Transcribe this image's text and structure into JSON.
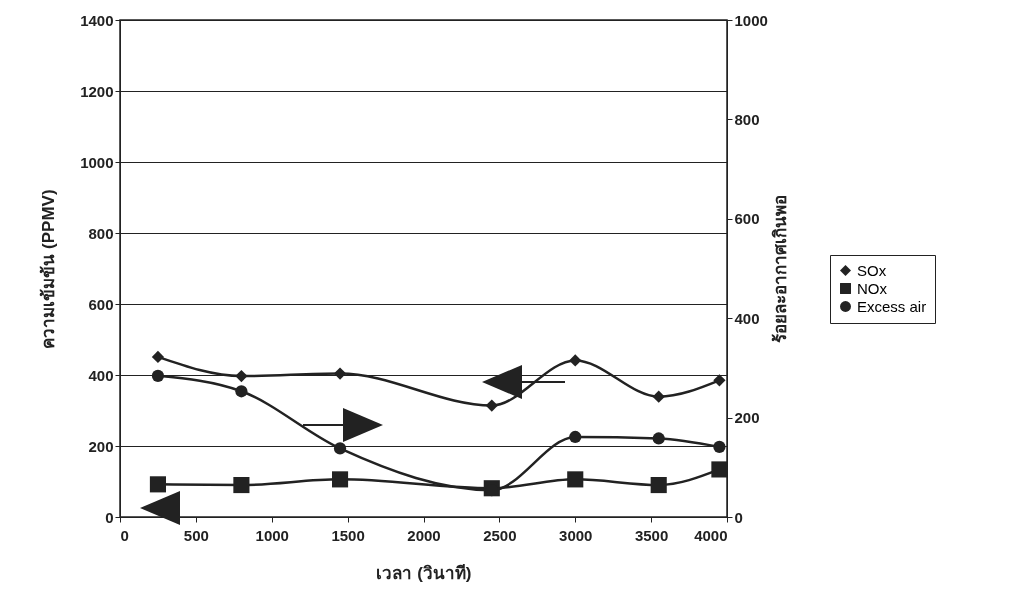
{
  "chart_data": {
    "type": "line",
    "xlabel": "เวลา (วินาที)",
    "ylabel": "ความเข้มข้น (PPMV)",
    "y2label": "ร้อยละอากาศเกินพอ",
    "x": [
      250,
      800,
      1450,
      2450,
      3000,
      3550,
      3950
    ],
    "xlim": [
      0,
      4000
    ],
    "xticks": [
      0,
      500,
      1000,
      1500,
      2000,
      2500,
      3000,
      3500,
      4000
    ],
    "ylim": [
      0,
      1400
    ],
    "yticks": [
      0,
      200,
      400,
      600,
      800,
      1000,
      1200,
      1400
    ],
    "y2lim": [
      0,
      1000
    ],
    "y2ticks": [
      0,
      200,
      400,
      600,
      800,
      1000
    ],
    "grid": "y",
    "legend": "right",
    "line_style": "solid",
    "series": [
      {
        "name": "SOx",
        "color": "#222222",
        "marker": "diamond",
        "values": [
          451,
          397,
          404,
          314,
          441,
          339,
          385
        ]
      },
      {
        "name": "NOx",
        "color": "#222222",
        "marker": "square",
        "values": [
          92,
          90,
          106,
          81,
          106,
          90,
          134
        ]
      },
      {
        "name": "Excess air",
        "color": "#222222",
        "marker": "circle",
        "axis": "y2",
        "values": [
          284,
          253,
          138,
          54,
          161,
          158,
          141
        ]
      }
    ]
  }
}
